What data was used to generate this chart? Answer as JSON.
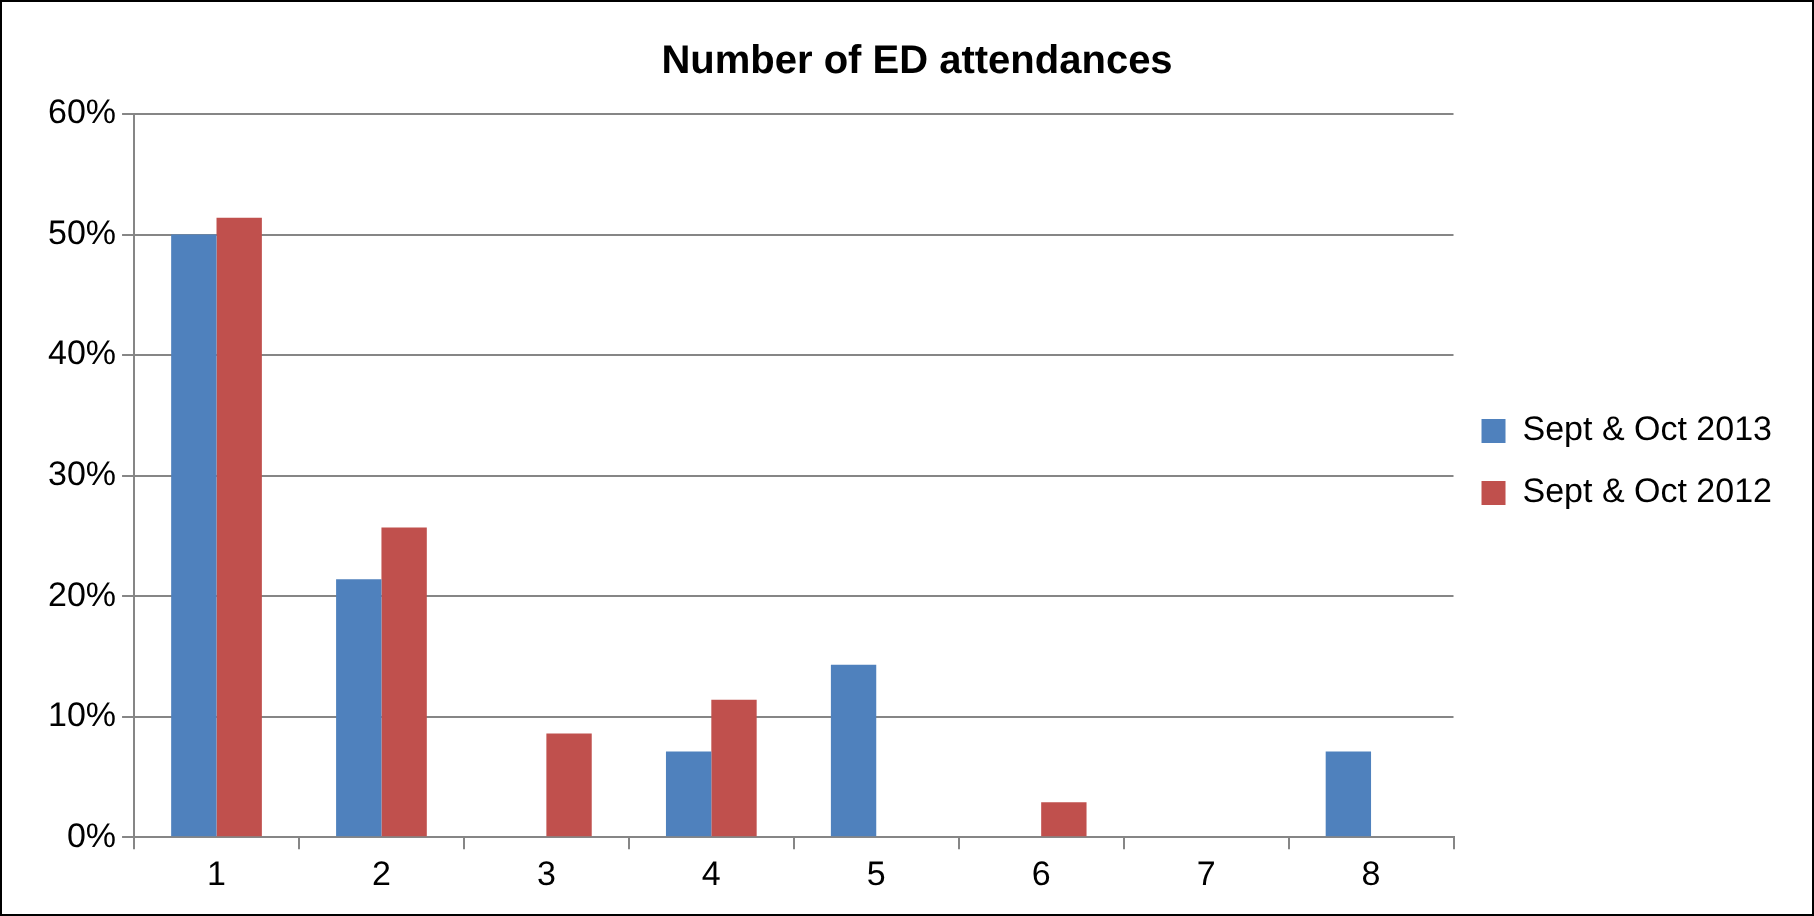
{
  "chart_data": {
    "type": "bar",
    "title": "Number of ED attendances",
    "categories": [
      "1",
      "2",
      "3",
      "4",
      "5",
      "6",
      "7",
      "8"
    ],
    "series": [
      {
        "name": "Sept & Oct 2013",
        "color": "#4f81bd",
        "values": [
          50,
          21.4,
          0,
          7.1,
          14.3,
          0,
          0,
          7.1
        ]
      },
      {
        "name": "Sept & Oct 2012",
        "color": "#c0504d",
        "values": [
          51.4,
          25.7,
          8.6,
          11.4,
          0,
          2.9,
          0,
          0
        ]
      }
    ],
    "ylim": [
      0,
      60
    ],
    "yticks": [
      {
        "value": 0,
        "label": "0%"
      },
      {
        "value": 10,
        "label": "10%"
      },
      {
        "value": 20,
        "label": "20%"
      },
      {
        "value": 30,
        "label": "30%"
      },
      {
        "value": 40,
        "label": "40%"
      },
      {
        "value": 50,
        "label": "50%"
      },
      {
        "value": 60,
        "label": "60%"
      }
    ],
    "grid": "y",
    "legend": "right"
  }
}
